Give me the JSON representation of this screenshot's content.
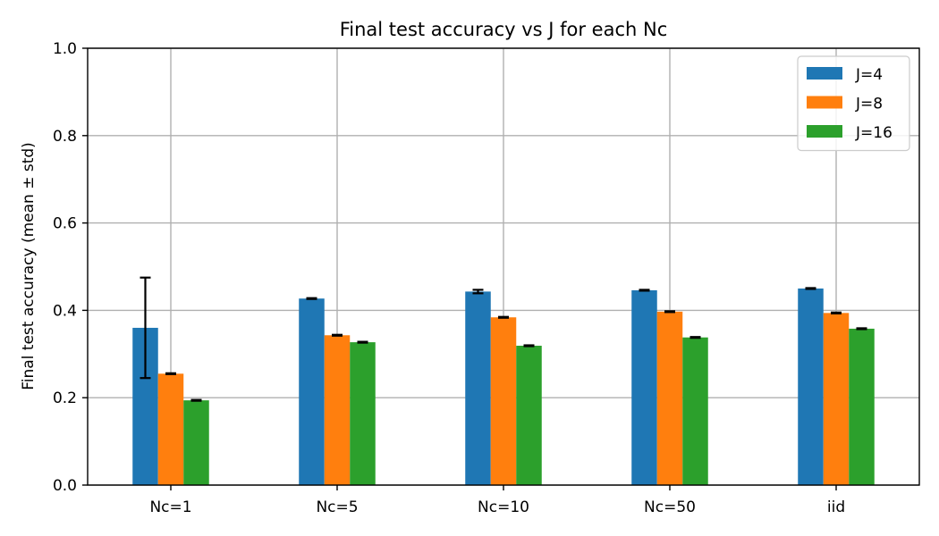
{
  "chart_data": {
    "type": "bar",
    "title": "Final test accuracy vs J for each Nc",
    "xlabel": "",
    "ylabel": "Final test accuracy (mean ± std)",
    "ylim": [
      0,
      1.0
    ],
    "yticks": [
      "0.0",
      "0.2",
      "0.4",
      "0.6",
      "0.8",
      "1.0"
    ],
    "categories": [
      "Nc=1",
      "Nc=5",
      "Nc=10",
      "Nc=50",
      "iid"
    ],
    "grid": true,
    "legend_position": "top-right",
    "series": [
      {
        "name": "J=4",
        "color": "#1f77b4",
        "values": [
          0.36,
          0.427,
          0.443,
          0.446,
          0.45
        ],
        "std": [
          0.115,
          0.001,
          0.004,
          0.001,
          0.001
        ]
      },
      {
        "name": "J=8",
        "color": "#ff7f0e",
        "values": [
          0.255,
          0.343,
          0.384,
          0.397,
          0.394
        ],
        "std": [
          0.001,
          0.001,
          0.001,
          0.001,
          0.001
        ]
      },
      {
        "name": "J=16",
        "color": "#2ca02c",
        "values": [
          0.194,
          0.327,
          0.319,
          0.338,
          0.358
        ],
        "std": [
          0.001,
          0.001,
          0.001,
          0.001,
          0.001
        ]
      }
    ]
  }
}
